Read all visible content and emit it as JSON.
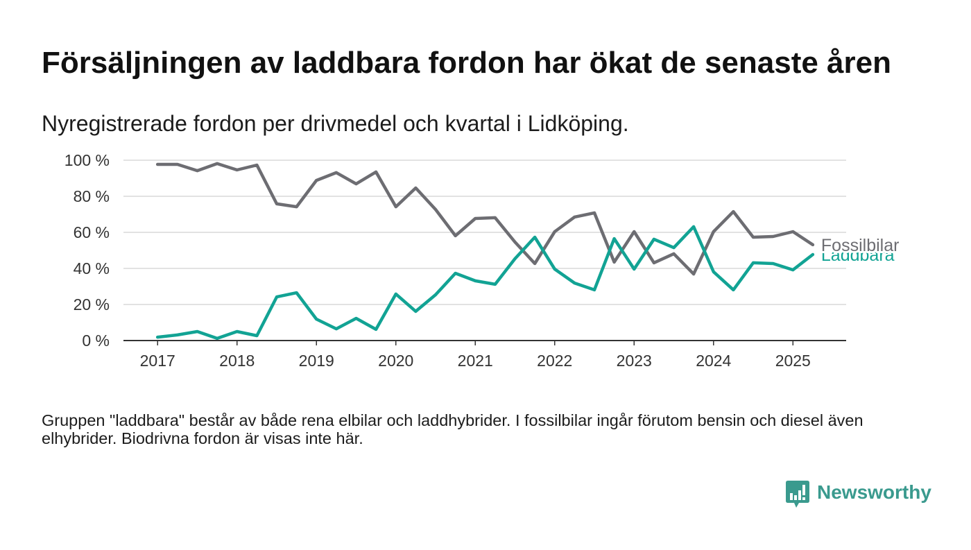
{
  "chart_data": {
    "type": "line",
    "title": "Försäljningen av laddbara fordon har ökat de senaste åren",
    "subtitle": "Nyregistrerade fordon per drivmedel och kvartal i Lidköping.",
    "x": [
      "2017-Q1",
      "2017-Q2",
      "2017-Q3",
      "2017-Q4",
      "2018-Q1",
      "2018-Q2",
      "2018-Q3",
      "2018-Q4",
      "2019-Q1",
      "2019-Q2",
      "2019-Q3",
      "2019-Q4",
      "2020-Q1",
      "2020-Q2",
      "2020-Q3",
      "2020-Q4",
      "2021-Q1",
      "2021-Q2",
      "2021-Q3",
      "2021-Q4",
      "2022-Q1",
      "2022-Q2",
      "2022-Q3",
      "2022-Q4",
      "2023-Q1",
      "2023-Q2",
      "2023-Q3",
      "2023-Q4",
      "2024-Q1",
      "2024-Q2",
      "2024-Q3",
      "2024-Q4",
      "2025-Q1",
      "2025-Q2"
    ],
    "xlim": [
      2016.57,
      2025.67
    ],
    "ylim": [
      0,
      100
    ],
    "x_ticks": {
      "values": [
        2017,
        2018,
        2019,
        2020,
        2021,
        2022,
        2023,
        2024,
        2025
      ],
      "labels": [
        "2017",
        "2018",
        "2019",
        "2020",
        "2021",
        "2022",
        "2023",
        "2024",
        "2025"
      ]
    },
    "y_ticks": {
      "values": [
        0,
        20,
        40,
        60,
        80,
        100
      ],
      "labels": [
        "0 %",
        "20 %",
        "40 %",
        "60 %",
        "80 %",
        "100 %"
      ]
    },
    "grid": "horizontal",
    "legend": "right",
    "series": [
      {
        "name": "Fossilbilar",
        "color": "#6d6d72",
        "values": [
          97.7,
          97.7,
          94.2,
          98.1,
          94.6,
          97.3,
          75.8,
          74.2,
          88.8,
          93.1,
          86.9,
          93.5,
          74.2,
          84.6,
          72.7,
          58.1,
          67.7,
          68.1,
          54.6,
          42.7,
          60.4,
          68.5,
          70.8,
          43.5,
          60.4,
          43.1,
          48.1,
          36.9,
          60.4,
          71.5,
          57.3,
          57.7,
          60.4,
          53.1
        ]
      },
      {
        "name": "Laddbara",
        "color": "#12a394",
        "values": [
          1.9,
          3.1,
          5.0,
          1.2,
          5.0,
          2.7,
          24.2,
          26.5,
          11.9,
          6.5,
          12.3,
          6.2,
          25.8,
          16.2,
          25.4,
          37.3,
          33.1,
          31.2,
          45.4,
          57.3,
          39.6,
          31.9,
          28.1,
          56.5,
          39.6,
          56.2,
          51.5,
          63.1,
          38.1,
          28.1,
          43.1,
          42.7,
          39.2,
          47.7
        ]
      }
    ]
  },
  "footnote": {
    "lines": [
      "Gruppen \"laddbara\" består av både rena elbilar och laddhybrider. I fossilbilar ingår förutom bensin och diesel även",
      "elhybrider. Biodrivna fordon är visas inte här."
    ]
  },
  "brand": {
    "name": "Newsworthy",
    "icon": "newsworthy-logo-icon",
    "color": "#3a9a8e"
  }
}
